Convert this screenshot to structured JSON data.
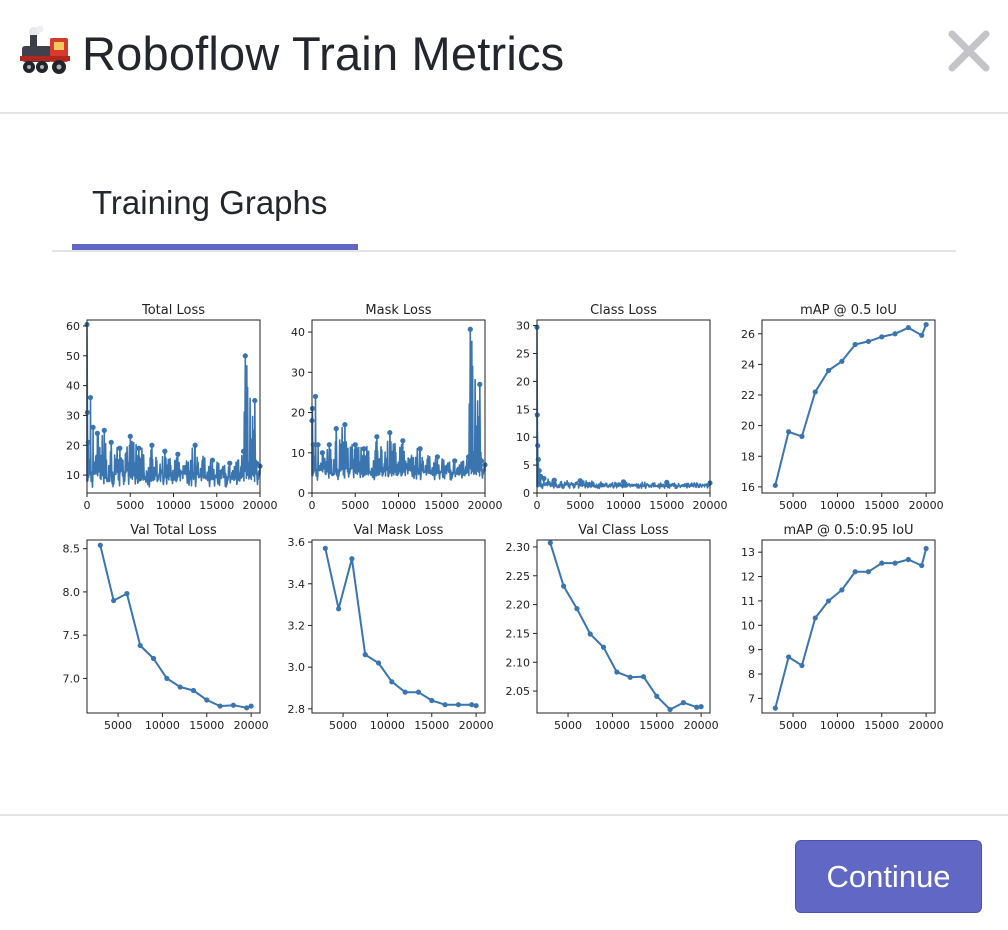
{
  "header": {
    "title": "Roboflow Train Metrics",
    "icon": "locomotive-icon",
    "close_icon": "close-icon"
  },
  "tabs": [
    {
      "label": "Training Graphs",
      "active": true
    }
  ],
  "footer": {
    "continue_label": "Continue"
  },
  "colors": {
    "accent": "#6066c3",
    "line": "#3a75b0",
    "text": "#24262d"
  },
  "chart_data": [
    {
      "type": "line",
      "title": "Total Loss",
      "xlim": [
        0,
        20000
      ],
      "ylim": [
        4,
        62
      ],
      "xticks": [
        0,
        5000,
        10000,
        15000,
        20000
      ],
      "yticks": [
        10,
        20,
        30,
        40,
        50,
        60
      ],
      "noisy": true,
      "x": [
        0,
        50,
        150,
        400,
        700,
        1200,
        2000,
        2800,
        3800,
        5000,
        6000,
        7500,
        9000,
        10500,
        12500,
        14500,
        16500,
        18100,
        18300,
        19400,
        19600,
        20000
      ],
      "values": [
        60.5,
        31,
        21,
        36,
        26,
        24,
        25,
        21,
        19,
        23,
        19,
        20,
        18,
        17,
        20,
        15,
        14,
        18,
        50,
        35,
        14,
        13
      ]
    },
    {
      "type": "line",
      "title": "Mask Loss",
      "xlim": [
        0,
        20000
      ],
      "ylim": [
        0,
        43
      ],
      "xticks": [
        0,
        5000,
        10000,
        15000,
        20000
      ],
      "yticks": [
        0,
        10,
        20,
        30,
        40
      ],
      "noisy": true,
      "x": [
        0,
        50,
        150,
        400,
        700,
        1200,
        2000,
        2800,
        3800,
        5000,
        6000,
        7500,
        9000,
        10500,
        12500,
        14500,
        16500,
        18100,
        18300,
        19400,
        19600,
        20000
      ],
      "values": [
        18,
        21,
        12,
        24,
        12,
        10,
        12,
        16,
        17,
        12,
        11,
        14,
        15,
        13,
        11,
        9,
        8,
        9,
        40.7,
        27,
        8,
        7
      ]
    },
    {
      "type": "line",
      "title": "Class Loss",
      "xlim": [
        0,
        20000
      ],
      "ylim": [
        0,
        31
      ],
      "xticks": [
        0,
        5000,
        10000,
        15000,
        20000
      ],
      "yticks": [
        0,
        5,
        10,
        15,
        20,
        25,
        30
      ],
      "noisy": true,
      "x": [
        0,
        30,
        80,
        150,
        250,
        400,
        800,
        2000,
        5000,
        10000,
        15000,
        20000
      ],
      "values": [
        29.7,
        14,
        8.5,
        6,
        4,
        3,
        2.6,
        2.3,
        2.2,
        2.0,
        1.9,
        1.8
      ]
    },
    {
      "type": "line",
      "title": "mAP @ 0.5 IoU",
      "xlim": [
        1500,
        21000
      ],
      "ylim": [
        15.6,
        26.9
      ],
      "xticks": [
        5000,
        10000,
        15000,
        20000
      ],
      "yticks": [
        16,
        18,
        20,
        22,
        24,
        26
      ],
      "x": [
        3000,
        4500,
        6000,
        7500,
        9000,
        10500,
        12000,
        13500,
        15000,
        16500,
        18000,
        19500,
        20000
      ],
      "values": [
        16.1,
        19.6,
        19.3,
        22.2,
        23.6,
        24.2,
        25.3,
        25.5,
        25.8,
        26.0,
        26.4,
        25.9,
        26.6
      ]
    },
    {
      "type": "line",
      "title": "Val Total Loss",
      "xlim": [
        1500,
        21000
      ],
      "ylim": [
        6.6,
        8.6
      ],
      "xticks": [
        5000,
        10000,
        15000,
        20000
      ],
      "yticks": [
        7.0,
        7.5,
        8.0,
        8.5
      ],
      "x": [
        3000,
        4500,
        6000,
        7500,
        9000,
        10500,
        12000,
        13500,
        15000,
        16500,
        18000,
        19500,
        20000
      ],
      "values": [
        8.54,
        7.9,
        7.98,
        7.38,
        7.23,
        7.0,
        6.9,
        6.86,
        6.75,
        6.68,
        6.69,
        6.66,
        6.68
      ]
    },
    {
      "type": "line",
      "title": "Val Mask Loss",
      "xlim": [
        1500,
        21000
      ],
      "ylim": [
        2.78,
        3.61
      ],
      "xticks": [
        5000,
        10000,
        15000,
        20000
      ],
      "yticks": [
        2.8,
        3.0,
        3.2,
        3.4,
        3.6
      ],
      "x": [
        3000,
        4500,
        6000,
        7500,
        9000,
        10500,
        12000,
        13500,
        15000,
        16500,
        18000,
        19500,
        20000
      ],
      "values": [
        3.57,
        3.28,
        3.52,
        3.06,
        3.02,
        2.93,
        2.88,
        2.88,
        2.84,
        2.82,
        2.82,
        2.82,
        2.815
      ]
    },
    {
      "type": "line",
      "title": "Val Class Loss",
      "xlim": [
        1500,
        21000
      ],
      "ylim": [
        2.012,
        2.312
      ],
      "xticks": [
        5000,
        10000,
        15000,
        20000
      ],
      "yticks": [
        2.05,
        2.1,
        2.15,
        2.2,
        2.25,
        2.3
      ],
      "x": [
        3000,
        4500,
        6000,
        7500,
        9000,
        10500,
        12000,
        13500,
        15000,
        16500,
        18000,
        19500,
        20000
      ],
      "values": [
        2.307,
        2.232,
        2.193,
        2.149,
        2.126,
        2.083,
        2.074,
        2.075,
        2.041,
        2.018,
        2.03,
        2.022,
        2.023
      ]
    },
    {
      "type": "line",
      "title": "mAP @ 0.5:0.95 IoU",
      "xlim": [
        1500,
        21000
      ],
      "ylim": [
        6.4,
        13.5
      ],
      "xticks": [
        5000,
        10000,
        15000,
        20000
      ],
      "yticks": [
        7,
        8,
        9,
        10,
        11,
        12,
        13
      ],
      "x": [
        3000,
        4500,
        6000,
        7500,
        9000,
        10500,
        12000,
        13500,
        15000,
        16500,
        18000,
        19500,
        20000
      ],
      "values": [
        6.6,
        8.7,
        8.35,
        10.3,
        11.0,
        11.45,
        12.2,
        12.2,
        12.55,
        12.55,
        12.7,
        12.45,
        13.15
      ]
    }
  ]
}
